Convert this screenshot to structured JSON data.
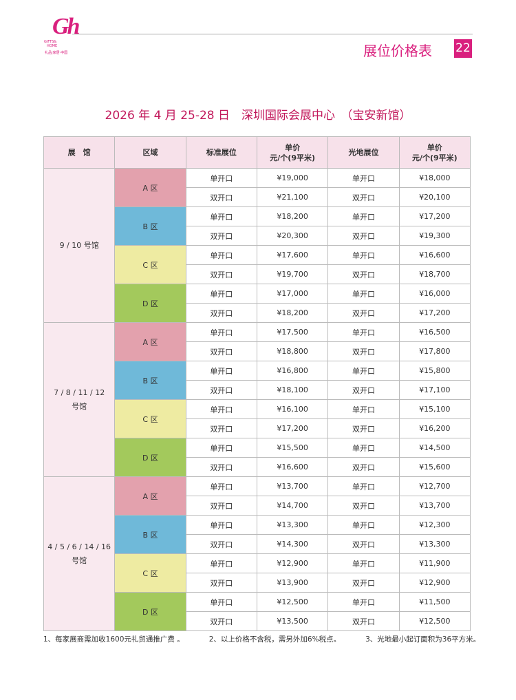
{
  "header": {
    "logo": {
      "mark": "Gh",
      "line1": "GIFTS&",
      "line2": "HOME",
      "line3": "礼品|家居·中国"
    },
    "title": "展位价格表",
    "page": "22"
  },
  "subtitle": "2026 年 4 月 25-28 日　深圳国际会展中心　（宝安新馆）",
  "table": {
    "columns": [
      [
        "展　馆"
      ],
      [
        "区域"
      ],
      [
        "标准展位"
      ],
      [
        "单价",
        "元/个(9平米)"
      ],
      [
        "光地展位"
      ],
      [
        "单价",
        "元/个(9平米)"
      ]
    ],
    "halls": [
      {
        "label": [
          "9 / 10 号馆"
        ],
        "zones": [
          {
            "label": "A 区",
            "rows": [
              [
                "单开口",
                "¥19,000",
                "单开口",
                "¥18,000"
              ],
              [
                "双开口",
                "¥21,100",
                "双开口",
                "¥20,100"
              ]
            ]
          },
          {
            "label": "B 区",
            "rows": [
              [
                "单开口",
                "¥18,200",
                "单开口",
                "¥17,200"
              ],
              [
                "双开口",
                "¥20,300",
                "双开口",
                "¥19,300"
              ]
            ]
          },
          {
            "label": "C 区",
            "rows": [
              [
                "单开口",
                "¥17,600",
                "单开口",
                "¥16,600"
              ],
              [
                "双开口",
                "¥19,700",
                "双开口",
                "¥18,700"
              ]
            ]
          },
          {
            "label": "D 区",
            "rows": [
              [
                "单开口",
                "¥17,000",
                "单开口",
                "¥16,000"
              ],
              [
                "双开口",
                "¥18,200",
                "双开口",
                "¥17,200"
              ]
            ]
          }
        ]
      },
      {
        "label": [
          "7 / 8 / 11 / 12",
          "号馆"
        ],
        "zones": [
          {
            "label": "A 区",
            "rows": [
              [
                "单开口",
                "¥17,500",
                "单开口",
                "¥16,500"
              ],
              [
                "双开口",
                "¥18,800",
                "双开口",
                "¥17,800"
              ]
            ]
          },
          {
            "label": "B 区",
            "rows": [
              [
                "单开口",
                "¥16,800",
                "单开口",
                "¥15,800"
              ],
              [
                "双开口",
                "¥18,100",
                "双开口",
                "¥17,100"
              ]
            ]
          },
          {
            "label": "C 区",
            "rows": [
              [
                "单开口",
                "¥16,100",
                "单开口",
                "¥15,100"
              ],
              [
                "双开口",
                "¥17,200",
                "双开口",
                "¥16,200"
              ]
            ]
          },
          {
            "label": "D 区",
            "rows": [
              [
                "单开口",
                "¥15,500",
                "单开口",
                "¥14,500"
              ],
              [
                "双开口",
                "¥16,600",
                "双开口",
                "¥15,600"
              ]
            ]
          }
        ]
      },
      {
        "label": [
          "4 / 5 / 6 / 14 / 16",
          "号馆"
        ],
        "zones": [
          {
            "label": "A 区",
            "rows": [
              [
                "单开口",
                "¥13,700",
                "单开口",
                "¥12,700"
              ],
              [
                "双开口",
                "¥14,700",
                "双开口",
                "¥13,700"
              ]
            ]
          },
          {
            "label": "B 区",
            "rows": [
              [
                "单开口",
                "¥13,300",
                "单开口",
                "¥12,300"
              ],
              [
                "双开口",
                "¥14,300",
                "双开口",
                "¥13,300"
              ]
            ]
          },
          {
            "label": "C 区",
            "rows": [
              [
                "单开口",
                "¥12,900",
                "单开口",
                "¥11,900"
              ],
              [
                "双开口",
                "¥13,900",
                "双开口",
                "¥12,900"
              ]
            ]
          },
          {
            "label": "D 区",
            "rows": [
              [
                "单开口",
                "¥12,500",
                "单开口",
                "¥11,500"
              ],
              [
                "双开口",
                "¥13,500",
                "双开口",
                "¥12,500"
              ]
            ]
          }
        ]
      }
    ]
  },
  "notes": [
    "1、每家展商需加收1600元礼贸通推广费 。",
    "2、以上价格不含税，需另外加6%税点。",
    "3、光地最小起订面积为36平方米。"
  ]
}
